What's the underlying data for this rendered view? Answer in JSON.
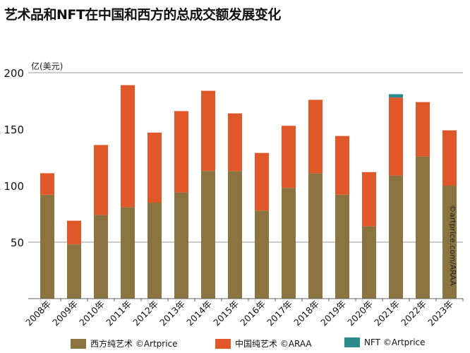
{
  "title": "艺术品和NFT在中国和西方的总成交额发展变化",
  "credit": "©artprice.com/ARAA",
  "chart_data": {
    "type": "bar",
    "stacked": true,
    "title": "艺术品和NFT在中国和西方的总成交额发展变化",
    "ylabel": "亿(美元)",
    "ylim": [
      0,
      200
    ],
    "yticks": [
      50,
      100,
      150,
      200
    ],
    "grid_lines": [
      50,
      200
    ],
    "legend_position": "bottom",
    "categories": [
      "2008年",
      "2009年",
      "2010年",
      "2011年",
      "2012年",
      "2013年",
      "2014年",
      "2015年",
      "2016年",
      "2017年",
      "2018年",
      "2019年",
      "2020年",
      "2021年",
      "2022年",
      "2023年"
    ],
    "series": [
      {
        "name": "西方纯艺术 ©Artprice",
        "color": "#8b7440",
        "values": [
          92,
          48,
          74,
          81,
          85,
          94,
          113,
          113,
          78,
          98,
          111,
          92,
          64,
          109,
          126,
          100
        ]
      },
      {
        "name": "中国纯艺术 ©ARAA",
        "color": "#e0582a",
        "values": [
          19,
          21,
          62,
          108,
          62,
          72,
          71,
          51,
          51,
          55,
          65,
          52,
          48,
          69,
          48,
          49
        ]
      },
      {
        "name": "NFT ©Artprice",
        "color": "#2b8a8a",
        "values": [
          0,
          0,
          0,
          0,
          0,
          0,
          0,
          0,
          0,
          0,
          0,
          0,
          0,
          3,
          0,
          0
        ]
      }
    ]
  }
}
